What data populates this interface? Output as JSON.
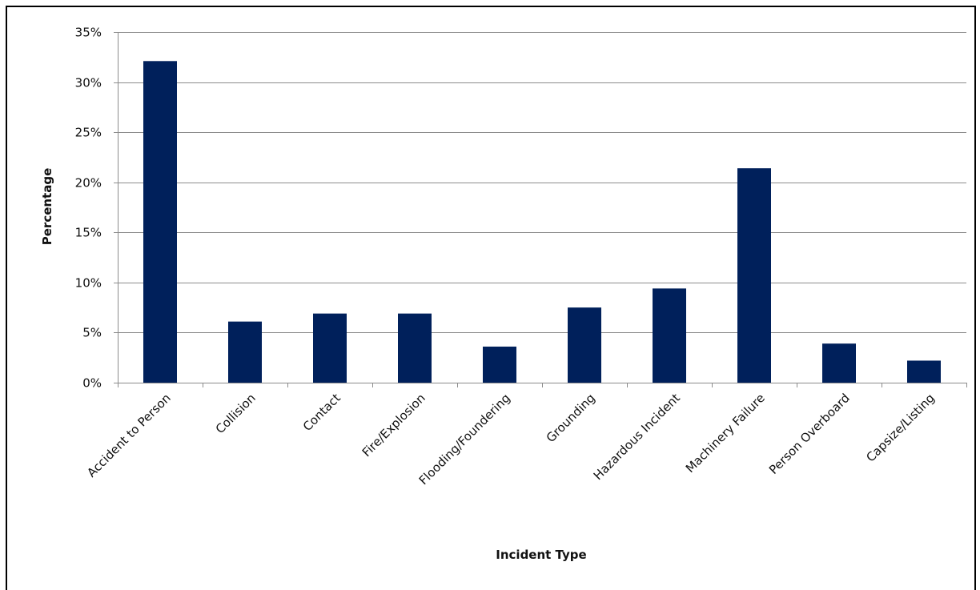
{
  "chart_data": {
    "type": "bar",
    "title": "",
    "xlabel": "Incident Type",
    "ylabel": "Percentage",
    "ylim": [
      0,
      35
    ],
    "ytick_step": 5,
    "ytick_format": "percent",
    "grid": true,
    "legend": "none",
    "categories": [
      "Accident to Person",
      "Collision",
      "Contact",
      "Fire/Explosion",
      "Flooding/Foundering",
      "Grounding",
      "Hazardous Incident",
      "Machinery Failure",
      "Person Overboard",
      "Capsize/Listing"
    ],
    "series": [
      {
        "values": [
          32.1,
          6.1,
          6.9,
          6.9,
          3.6,
          7.5,
          9.4,
          21.4,
          3.9,
          2.2
        ],
        "color": "#00205B"
      }
    ]
  }
}
